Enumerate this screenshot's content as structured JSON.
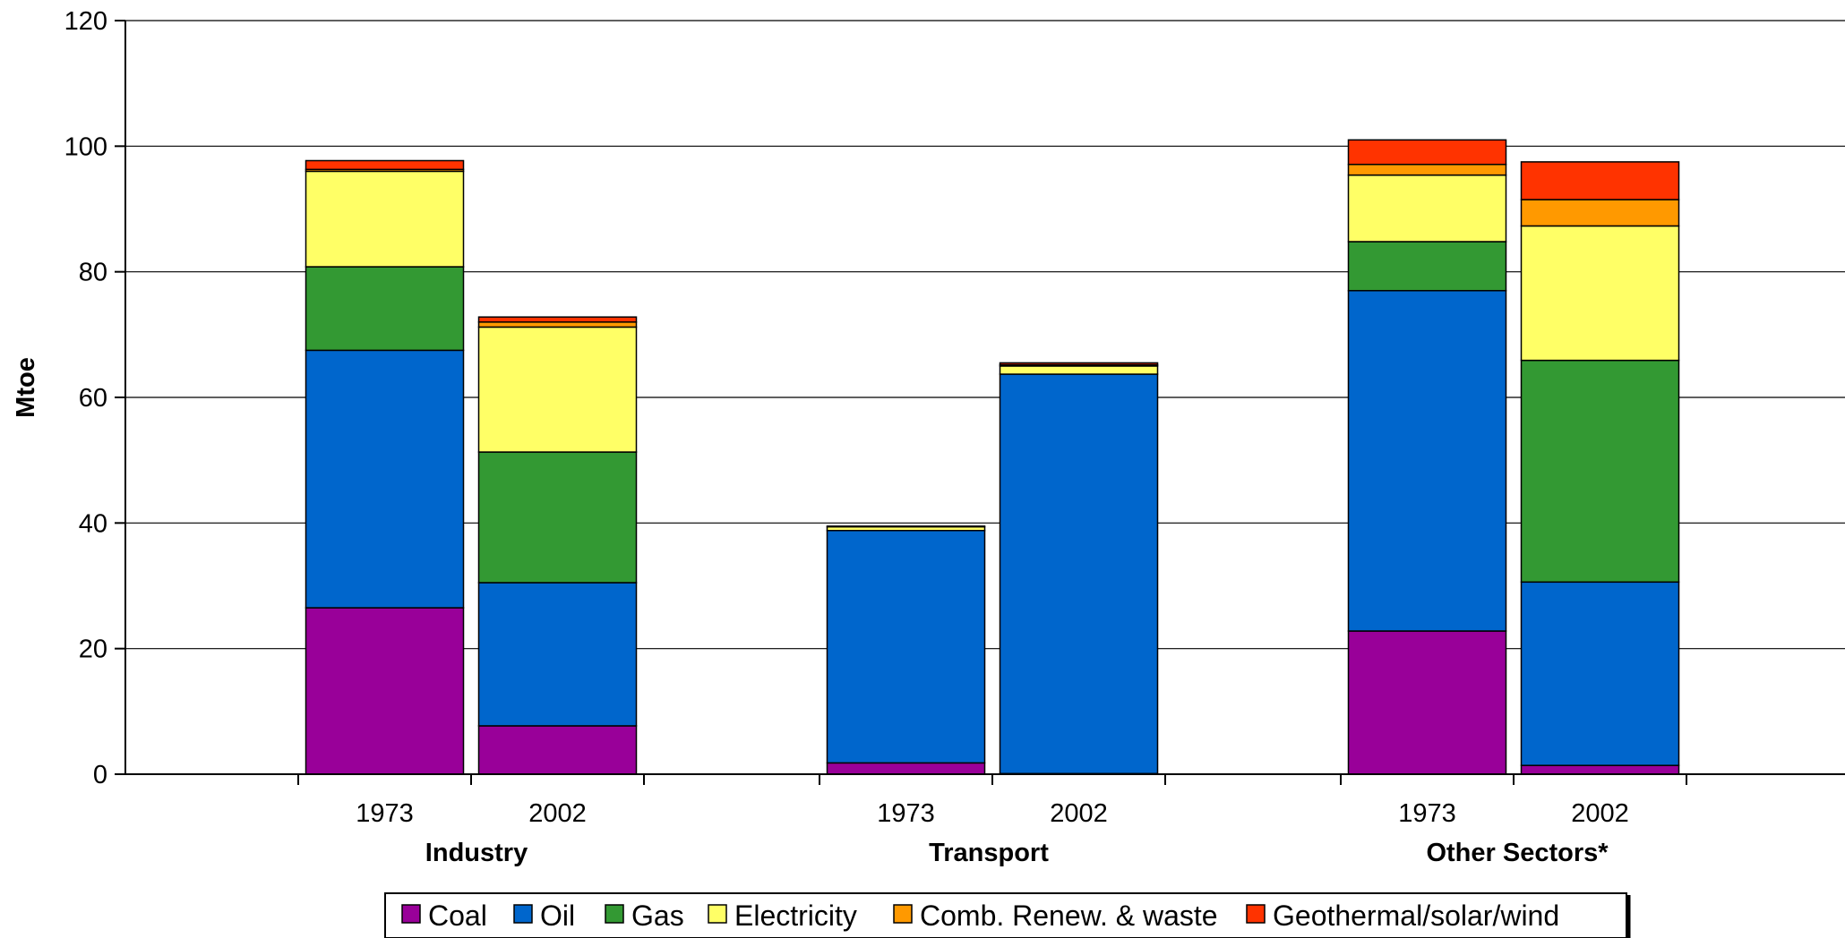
{
  "chart_data": {
    "type": "bar",
    "stacked": true,
    "ylabel": "Mtoe",
    "ylim": [
      0,
      120
    ],
    "yticks": [
      0,
      20,
      40,
      60,
      80,
      100,
      120
    ],
    "grid": true,
    "legend_position": "bottom",
    "groups": [
      {
        "name": "Industry",
        "categories": [
          "1973",
          "2002"
        ]
      },
      {
        "name": "Transport",
        "categories": [
          "1973",
          "2002"
        ]
      },
      {
        "name": "Other Sectors*",
        "categories": [
          "1973",
          "2002"
        ]
      }
    ],
    "series": [
      {
        "name": "Coal",
        "color": "#990099",
        "values": [
          26.5,
          7.7,
          1.8,
          0.1,
          22.8,
          1.4
        ]
      },
      {
        "name": "Oil",
        "color": "#0066CC",
        "values": [
          41.0,
          22.8,
          37.0,
          63.6,
          54.2,
          29.2
        ]
      },
      {
        "name": "Gas",
        "color": "#339933",
        "values": [
          13.3,
          20.8,
          0.0,
          0.0,
          7.8,
          35.3
        ]
      },
      {
        "name": "Electricity",
        "color": "#FFFF66",
        "values": [
          15.2,
          19.9,
          0.6,
          1.3,
          10.6,
          21.4
        ]
      },
      {
        "name": "Comb. Renew. & waste",
        "color": "#FF9900",
        "values": [
          0.3,
          0.8,
          0.1,
          0.2,
          1.7,
          4.2
        ]
      },
      {
        "name": "Geothermal/solar/wind",
        "color": "#FF3300",
        "values": [
          1.4,
          0.8,
          0.0,
          0.3,
          3.9,
          6.0
        ]
      }
    ]
  }
}
